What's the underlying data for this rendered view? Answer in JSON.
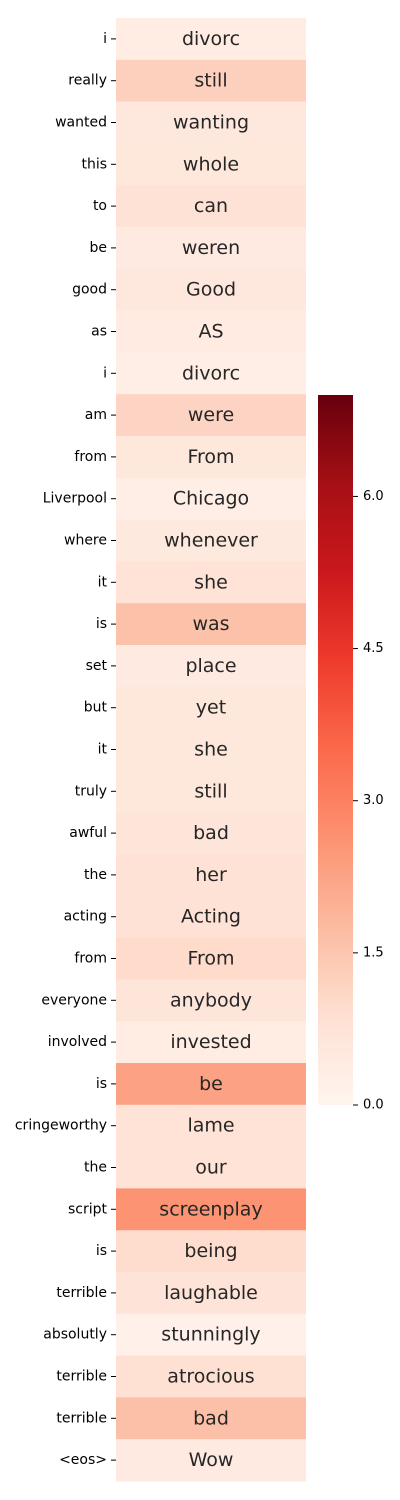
{
  "chart_data": {
    "type": "heatmap",
    "title": "",
    "xlabel": "",
    "ylabel": "",
    "colormap": "Reds",
    "colorbar": {
      "range": [
        0.0,
        7.0
      ],
      "ticks": [
        0.0,
        1.5,
        3.0,
        4.5,
        6.0
      ],
      "tick_labels": [
        "0.0",
        "1.5",
        "3.0",
        "4.5",
        "6.0"
      ]
    },
    "rows": [
      {
        "label": "i",
        "text": "divorc",
        "value": 0.35
      },
      {
        "label": "really",
        "text": "still",
        "value": 1.25
      },
      {
        "label": "wanted",
        "text": "wanting",
        "value": 0.55
      },
      {
        "label": "this",
        "text": "whole",
        "value": 0.6
      },
      {
        "label": "to",
        "text": "can",
        "value": 0.8
      },
      {
        "label": "be",
        "text": "weren",
        "value": 0.45
      },
      {
        "label": "good",
        "text": "Good",
        "value": 0.55
      },
      {
        "label": "as",
        "text": "AS",
        "value": 0.4
      },
      {
        "label": "i",
        "text": "divorc",
        "value": 0.3
      },
      {
        "label": "am",
        "text": "were",
        "value": 1.15
      },
      {
        "label": "from",
        "text": "From",
        "value": 0.6
      },
      {
        "label": "Liverpool",
        "text": "Chicago",
        "value": 0.3
      },
      {
        "label": "where",
        "text": "whenever",
        "value": 0.5
      },
      {
        "label": "it",
        "text": "she",
        "value": 0.75
      },
      {
        "label": "is",
        "text": "was",
        "value": 1.6
      },
      {
        "label": "set",
        "text": "place",
        "value": 0.45
      },
      {
        "label": "but",
        "text": "yet",
        "value": 0.6
      },
      {
        "label": "it",
        "text": "she",
        "value": 0.6
      },
      {
        "label": "truly",
        "text": "still",
        "value": 0.6
      },
      {
        "label": "awful",
        "text": "bad",
        "value": 0.65
      },
      {
        "label": "the",
        "text": "her",
        "value": 0.8
      },
      {
        "label": "acting",
        "text": "Acting",
        "value": 0.8
      },
      {
        "label": "from",
        "text": "From",
        "value": 1.0
      },
      {
        "label": "everyone",
        "text": "anybody",
        "value": 0.65
      },
      {
        "label": "involved",
        "text": "invested",
        "value": 0.35
      },
      {
        "label": "is",
        "text": "be",
        "value": 2.3
      },
      {
        "label": "cringeworthy",
        "text": "lame",
        "value": 0.75
      },
      {
        "label": "the",
        "text": "our",
        "value": 0.75
      },
      {
        "label": "script",
        "text": "screenplay",
        "value": 2.6
      },
      {
        "label": "is",
        "text": "being",
        "value": 0.95
      },
      {
        "label": "terrible",
        "text": "laughable",
        "value": 0.7
      },
      {
        "label": "absolutly",
        "text": "stunningly",
        "value": 0.2
      },
      {
        "label": "terrible",
        "text": "atrocious",
        "value": 0.85
      },
      {
        "label": "terrible",
        "text": "bad",
        "value": 1.65
      },
      {
        "label": "<eos>",
        "text": "Wow",
        "value": 0.45
      }
    ]
  }
}
